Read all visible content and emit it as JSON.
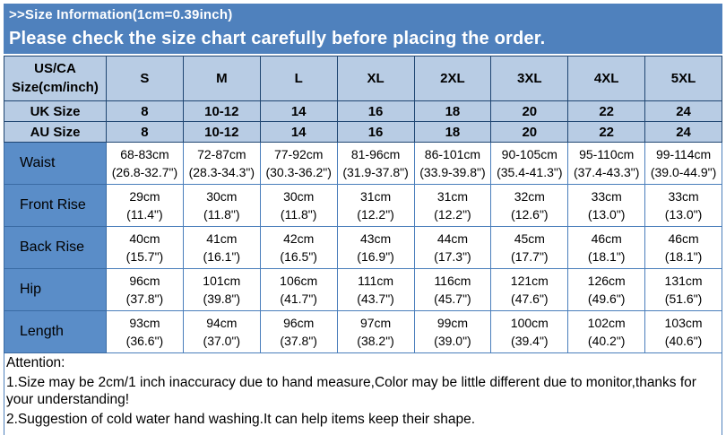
{
  "banner": {
    "line1": ">>Size Information(1cm=0.39inch)",
    "line2": "Please check the size chart carefully before placing the order."
  },
  "table": {
    "corner_header": "US/CA Size(cm/inch)",
    "size_columns": [
      "S",
      "M",
      "L",
      "XL",
      "2XL",
      "3XL",
      "4XL",
      "5XL"
    ],
    "size_rows": [
      {
        "label": "UK Size",
        "values": [
          "8",
          "10-12",
          "14",
          "16",
          "18",
          "20",
          "22",
          "24"
        ]
      },
      {
        "label": "AU Size",
        "values": [
          "8",
          "10-12",
          "14",
          "16",
          "18",
          "20",
          "22",
          "24"
        ]
      }
    ],
    "measurement_rows": [
      {
        "label": "Waist",
        "cm": [
          "68-83cm",
          "72-87cm",
          "77-92cm",
          "81-96cm",
          "86-101cm",
          "90-105cm",
          "95-110cm",
          "99-114cm"
        ],
        "inch": [
          "(26.8-32.7\")",
          "(28.3-34.3\")",
          "(30.3-36.2\")",
          "(31.9-37.8\")",
          "(33.9-39.8\")",
          "(35.4-41.3\")",
          "(37.4-43.3\")",
          "(39.0-44.9\")"
        ]
      },
      {
        "label": "Front Rise",
        "cm": [
          "29cm",
          "30cm",
          "30cm",
          "31cm",
          "31cm",
          "32cm",
          "33cm",
          "33cm"
        ],
        "inch": [
          "(11.4\")",
          "(11.8\")",
          "(11.8\")",
          "(12.2\")",
          "(12.2\")",
          "(12.6\")",
          "(13.0\")",
          "(13.0\")"
        ]
      },
      {
        "label": "Back Rise",
        "cm": [
          "40cm",
          "41cm",
          "42cm",
          "43cm",
          "44cm",
          "45cm",
          "46cm",
          "46cm"
        ],
        "inch": [
          "(15.7\")",
          "(16.1\")",
          "(16.5\")",
          "(16.9\")",
          "(17.3\")",
          "(17.7\")",
          "(18.1\")",
          "(18.1\")"
        ]
      },
      {
        "label": "Hip",
        "cm": [
          "96cm",
          "101cm",
          "106cm",
          "111cm",
          "116cm",
          "121cm",
          "126cm",
          "131cm"
        ],
        "inch": [
          "(37.8\")",
          "(39.8\")",
          "(41.7\")",
          "(43.7\")",
          "(45.7\")",
          "(47.6\")",
          "(49.6\")",
          "(51.6\")"
        ]
      },
      {
        "label": "Length",
        "cm": [
          "93cm",
          "94cm",
          "96cm",
          "97cm",
          "99cm",
          "100cm",
          "102cm",
          "103cm"
        ],
        "inch": [
          "(36.6\")",
          "(37.0\")",
          "(37.8\")",
          "(38.2\")",
          "(39.0\")",
          "(39.4\")",
          "(40.2\")",
          "(40.6\")"
        ]
      }
    ]
  },
  "attention": {
    "title": "Attention:",
    "lines": [
      "1.Size may be 2cm/1 inch inaccuracy due to hand measure,Color may be little different due to monitor,thanks for your understanding!",
      "2.Suggestion of cold water hand washing.It can help items keep their shape."
    ]
  },
  "colors": {
    "banner_blue": "#4f81bd",
    "header_light_blue": "#b8cce4",
    "label_medium_blue": "#5a8dc8",
    "grid_border_blue": "#4a7ebb"
  }
}
